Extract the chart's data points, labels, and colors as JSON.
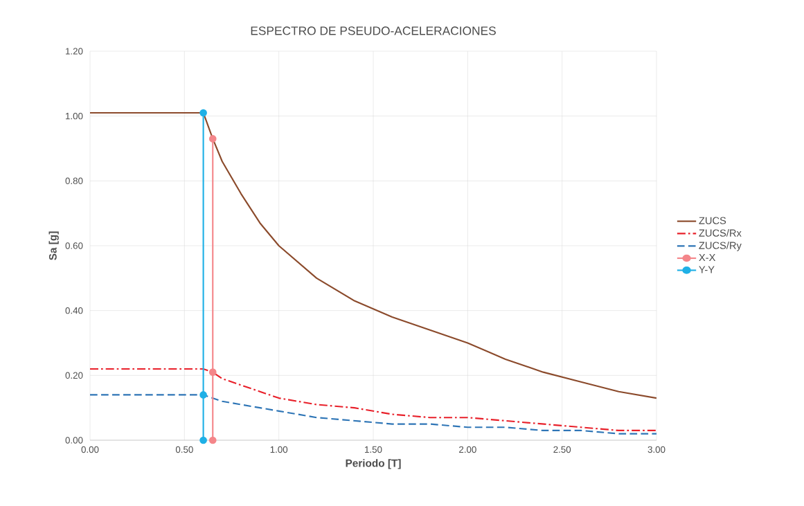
{
  "chart_data": {
    "type": "line",
    "title": "ESPECTRO DE PSEUDO-ACELERACIONES",
    "xlabel": "Periodo [T]",
    "ylabel": "Sa [g]",
    "xlim": [
      0,
      3
    ],
    "ylim": [
      0,
      1.2
    ],
    "xticks": [
      {
        "value": 0,
        "label": "0.00"
      },
      {
        "value": 0.5,
        "label": "0.50"
      },
      {
        "value": 1,
        "label": "1.00"
      },
      {
        "value": 1.5,
        "label": "1.50"
      },
      {
        "value": 2,
        "label": "2.00"
      },
      {
        "value": 2.5,
        "label": "2.50"
      },
      {
        "value": 3,
        "label": "3.00"
      }
    ],
    "yticks": [
      {
        "value": 0,
        "label": "0.00"
      },
      {
        "value": 0.2,
        "label": "0.20"
      },
      {
        "value": 0.4,
        "label": "0.40"
      },
      {
        "value": 0.6,
        "label": "0.60"
      },
      {
        "value": 0.8,
        "label": "0.80"
      },
      {
        "value": 1.0,
        "label": "1.00"
      },
      {
        "value": 1.2,
        "label": "1.20"
      }
    ],
    "grid": true,
    "legend": "right",
    "series": [
      {
        "name": "ZUCS",
        "color": "#8b4a2b",
        "line_style": "solid",
        "marker": "none",
        "x": [
          0,
          0.6,
          0.65,
          0.7,
          0.8,
          0.9,
          1.0,
          1.2,
          1.4,
          1.6,
          1.8,
          2.0,
          2.2,
          2.4,
          2.6,
          2.8,
          3.0
        ],
        "values": [
          1.01,
          1.01,
          0.93,
          0.86,
          0.76,
          0.67,
          0.6,
          0.5,
          0.43,
          0.38,
          0.34,
          0.3,
          0.25,
          0.21,
          0.18,
          0.15,
          0.13
        ]
      },
      {
        "name": "ZUCS/Rx",
        "color": "#e8202a",
        "line_style": "dashdot",
        "marker": "none",
        "x": [
          0,
          0.6,
          0.65,
          0.7,
          0.8,
          0.9,
          1.0,
          1.2,
          1.4,
          1.6,
          1.8,
          2.0,
          2.2,
          2.4,
          2.6,
          2.8,
          3.0
        ],
        "values": [
          0.22,
          0.22,
          0.21,
          0.19,
          0.17,
          0.15,
          0.13,
          0.11,
          0.1,
          0.08,
          0.07,
          0.07,
          0.06,
          0.05,
          0.04,
          0.03,
          0.03
        ]
      },
      {
        "name": "ZUCS/Ry",
        "color": "#2e75b6",
        "line_style": "dashed",
        "marker": "none",
        "x": [
          0,
          0.6,
          0.65,
          0.7,
          0.8,
          0.9,
          1.0,
          1.2,
          1.4,
          1.6,
          1.8,
          2.0,
          2.2,
          2.4,
          2.6,
          2.8,
          3.0
        ],
        "values": [
          0.14,
          0.14,
          0.13,
          0.12,
          0.11,
          0.1,
          0.09,
          0.07,
          0.06,
          0.05,
          0.05,
          0.04,
          0.04,
          0.03,
          0.03,
          0.02,
          0.02
        ]
      },
      {
        "name": "X-X",
        "color": "#f4868a",
        "line_style": "solid",
        "marker": "circle",
        "x": [
          0.65,
          0.65,
          0.65
        ],
        "values": [
          0,
          0.21,
          0.93
        ]
      },
      {
        "name": "Y-Y",
        "color": "#1fb0e6",
        "line_style": "solid",
        "marker": "circle",
        "x": [
          0.6,
          0.6,
          0.6
        ],
        "values": [
          0,
          0.14,
          1.01
        ]
      }
    ]
  }
}
